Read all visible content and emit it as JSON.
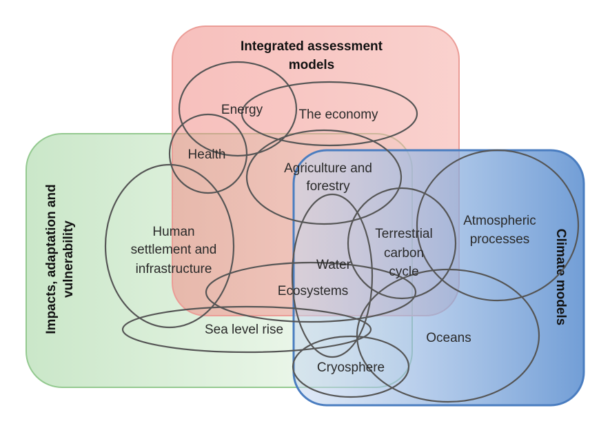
{
  "domains": {
    "iam": {
      "title_line1": "Integrated assessment",
      "title_line2": "models",
      "color": "#f3a8a4"
    },
    "iav": {
      "title_line1": "Impacts, adaptation and",
      "title_line2": "vulnerability",
      "color": "#bfe3bd"
    },
    "climate": {
      "title": "Climate models",
      "color": "#8fb2e0",
      "border_color": "#4a7dc0"
    }
  },
  "topics": {
    "energy": "Energy",
    "economy": "The economy",
    "health": "Health",
    "agriculture_line1": "Agriculture and",
    "agriculture_line2": "forestry",
    "human_settlement_line1": "Human",
    "human_settlement_line2": "settlement and",
    "human_settlement_line3": "infrastructure",
    "terrestrial_line1": "Terrestrial",
    "terrestrial_line2": "carbon",
    "terrestrial_line3": "cycle",
    "atmospheric_line1": "Atmospheric",
    "atmospheric_line2": "processes",
    "water": "Water",
    "ecosystems": "Ecosystems",
    "sea_level": "Sea level rise",
    "oceans": "Oceans",
    "cryosphere": "Cryosphere"
  }
}
